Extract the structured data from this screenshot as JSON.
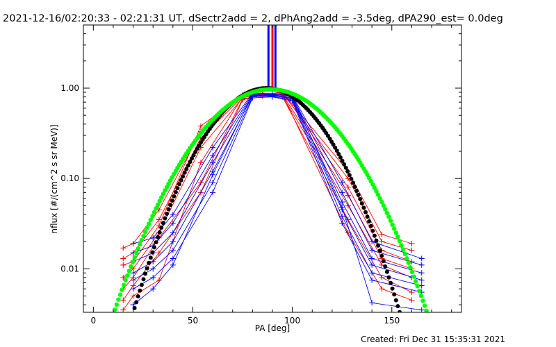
{
  "chart_data": {
    "type": "line",
    "title": "2021-12-16/02:20:33 - 02:21:31 UT, dSectr2add = 2, dPhAng2add = -3.5deg, dPA290_est=  0.0deg",
    "xlabel": "PA [deg]",
    "ylabel": "nflux [#/(cm^2 s sr MeV)]",
    "xscale": "linear",
    "yscale": "log",
    "xlim": [
      -5,
      185
    ],
    "ylim": [
      0.0033,
      5.0
    ],
    "x_ticks": [
      0,
      50,
      100,
      150
    ],
    "x_tick_labels": [
      "0",
      "50",
      "100",
      "150"
    ],
    "y_ticks": [
      0.01,
      0.1,
      1.0
    ],
    "y_tick_labels": [
      "0.01",
      "0.10",
      "1.00"
    ],
    "footer": "Created: Fri Dec 31 15:35:31 2021",
    "colors": {
      "red": "#ff0000",
      "blue": "#0000ff",
      "black": "#000000",
      "green": "#00ff00"
    },
    "fits": [
      {
        "name": "black fit",
        "color": "black",
        "center": 87,
        "width": 28,
        "amplitude": 1.0
      },
      {
        "name": "green fit",
        "color": "green",
        "center": 89,
        "width": 33,
        "amplitude": 0.97
      }
    ],
    "series": [
      {
        "name": "red sweep 1",
        "color": "red",
        "x": [
          15,
          20,
          33,
          54,
          75,
          85,
          95,
          128,
          145,
          160
        ],
        "y": [
          0.017,
          0.019,
          0.045,
          0.33,
          0.82,
          0.85,
          0.9,
          0.12,
          0.024,
          0.019
        ]
      },
      {
        "name": "red sweep 2",
        "color": "red",
        "x": [
          15,
          20,
          33,
          54,
          75,
          85,
          95,
          128,
          145,
          160
        ],
        "y": [
          0.013,
          0.015,
          0.035,
          0.28,
          0.8,
          0.87,
          0.88,
          0.1,
          0.02,
          0.016
        ]
      },
      {
        "name": "red sweep 3",
        "color": "red",
        "x": [
          15,
          20,
          33,
          54,
          75,
          85,
          95,
          128,
          145,
          160
        ],
        "y": [
          0.011,
          0.012,
          0.03,
          0.38,
          0.84,
          0.82,
          0.92,
          0.08,
          0.016,
          0.012
        ]
      },
      {
        "name": "red sweep 4",
        "color": "red",
        "x": [
          15,
          20,
          33,
          54,
          75,
          85,
          95,
          128,
          145,
          160
        ],
        "y": [
          0.008,
          0.01,
          0.025,
          0.22,
          0.78,
          0.88,
          0.85,
          0.065,
          0.013,
          0.01
        ]
      },
      {
        "name": "red sweep 5",
        "color": "red",
        "x": [
          15,
          20,
          33,
          54,
          75,
          85,
          95,
          128,
          145,
          160
        ],
        "y": [
          0.006,
          0.008,
          0.022,
          0.09,
          0.76,
          0.84,
          0.82,
          0.05,
          0.011,
          0.008
        ]
      },
      {
        "name": "red sweep 6",
        "color": "red",
        "x": [
          15,
          20,
          33,
          54,
          75,
          85,
          95,
          128,
          145,
          160
        ],
        "y": [
          0.0045,
          0.0065,
          0.015,
          0.07,
          0.74,
          0.86,
          0.8,
          0.035,
          0.008,
          0.0055
        ]
      },
      {
        "name": "red sweep 7",
        "color": "red",
        "x": [
          15,
          20,
          33,
          54,
          75,
          85,
          95,
          128,
          145,
          160
        ],
        "y": [
          0.0035,
          0.005,
          0.0075,
          0.15,
          0.8,
          0.83,
          0.86,
          0.025,
          0.006,
          0.0045
        ]
      },
      {
        "name": "blue sweep 1",
        "color": "blue",
        "x": [
          20,
          30,
          40,
          60,
          80,
          90,
          100,
          125,
          140,
          165
        ],
        "y": [
          0.019,
          0.022,
          0.04,
          0.22,
          0.88,
          0.86,
          0.82,
          0.09,
          0.02,
          0.013
        ]
      },
      {
        "name": "blue sweep 2",
        "color": "blue",
        "x": [
          20,
          30,
          40,
          60,
          80,
          90,
          100,
          125,
          140,
          165
        ],
        "y": [
          0.015,
          0.018,
          0.032,
          0.18,
          0.86,
          0.84,
          0.8,
          0.07,
          0.016,
          0.011
        ]
      },
      {
        "name": "blue sweep 3",
        "color": "blue",
        "x": [
          20,
          30,
          40,
          60,
          80,
          90,
          100,
          125,
          140,
          165
        ],
        "y": [
          0.012,
          0.015,
          0.025,
          0.15,
          0.84,
          0.82,
          0.78,
          0.055,
          0.013,
          0.009
        ]
      },
      {
        "name": "blue sweep 4",
        "color": "blue",
        "x": [
          20,
          30,
          40,
          60,
          80,
          90,
          100,
          125,
          140,
          165
        ],
        "y": [
          0.009,
          0.012,
          0.02,
          0.12,
          0.82,
          0.83,
          0.76,
          0.045,
          0.011,
          0.0075
        ]
      },
      {
        "name": "blue sweep 5",
        "color": "blue",
        "x": [
          20,
          30,
          40,
          60,
          80,
          90,
          100,
          125,
          140,
          165
        ],
        "y": [
          0.0075,
          0.01,
          0.016,
          0.09,
          0.8,
          0.81,
          0.74,
          0.038,
          0.009,
          0.0065
        ]
      },
      {
        "name": "blue sweep 6",
        "color": "blue",
        "x": [
          20,
          30,
          40,
          60,
          80,
          90,
          100,
          125,
          140,
          165
        ],
        "y": [
          0.006,
          0.008,
          0.013,
          0.07,
          0.78,
          0.8,
          0.72,
          0.032,
          0.0075,
          0.0055
        ]
      },
      {
        "name": "blue sweep 7",
        "color": "blue",
        "x": [
          20,
          30,
          40,
          60,
          80,
          90,
          100,
          125,
          140,
          165
        ],
        "y": [
          0.004,
          0.006,
          0.011,
          0.11,
          0.85,
          0.85,
          0.83,
          0.048,
          0.0042,
          0.0035
        ]
      }
    ]
  }
}
